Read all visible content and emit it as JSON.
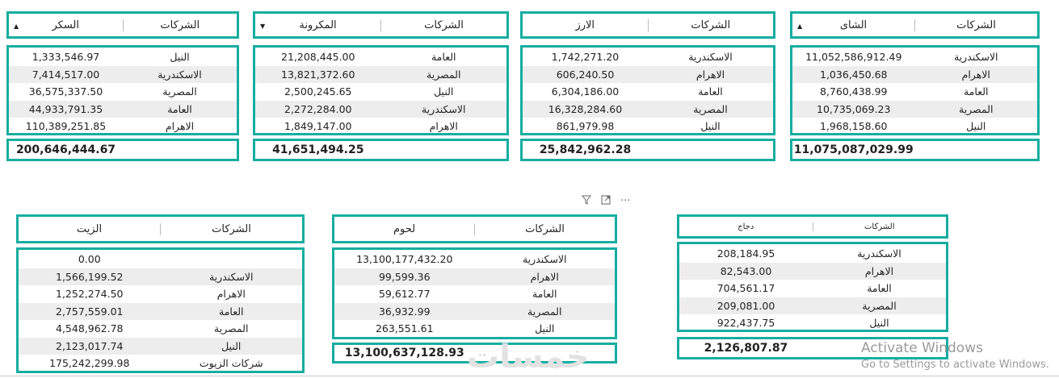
{
  "tables": [
    {
      "id": "sugar",
      "value_header": "السكر",
      "company_header": "الشركات",
      "sort_indicator": "▲",
      "rows": [
        {
          "value": "1,333,546.97",
          "company": "النيل"
        },
        {
          "value": "7,414,517.00",
          "company": "الاسكندرية"
        },
        {
          "value": "36,575,337.50",
          "company": "المصرية"
        },
        {
          "value": "44,933,791.35",
          "company": "العامة"
        },
        {
          "value": "110,389,251.85",
          "company": "الاهرام"
        }
      ],
      "total": "200,646,444.67"
    },
    {
      "id": "pasta",
      "value_header": "المكرونة",
      "company_header": "الشركات",
      "sort_indicator": "▼",
      "rows": [
        {
          "value": "21,208,445.00",
          "company": "العامة"
        },
        {
          "value": "13,821,372.60",
          "company": "المصرية"
        },
        {
          "value": "2,500,245.65",
          "company": "النيل"
        },
        {
          "value": "2,272,284.00",
          "company": "الاسكندرية"
        },
        {
          "value": "1,849,147.00",
          "company": "الاهرام"
        }
      ],
      "total": "41,651,494.25"
    },
    {
      "id": "rice",
      "value_header": "الارز",
      "company_header": "الشركات",
      "sort_indicator": "",
      "rows": [
        {
          "value": "1,742,271.20",
          "company": "الاسكندرية"
        },
        {
          "value": "606,240.50",
          "company": "الاهرام"
        },
        {
          "value": "6,304,186.00",
          "company": "العامة"
        },
        {
          "value": "16,328,284.60",
          "company": "المصرية"
        },
        {
          "value": "861,979.98",
          "company": "النيل"
        }
      ],
      "total": "25,842,962.28"
    },
    {
      "id": "tea",
      "value_header": "الشاى",
      "company_header": "الشركات",
      "sort_indicator": "▲",
      "rows": [
        {
          "value": "11,052,586,912.49",
          "company": "الاسكندرية"
        },
        {
          "value": "1,036,450.68",
          "company": "الاهرام"
        },
        {
          "value": "8,760,438.99",
          "company": "العامة"
        },
        {
          "value": "10,735,069.23",
          "company": "المصرية"
        },
        {
          "value": "1,968,158.60",
          "company": "النيل"
        }
      ],
      "total": "11,075,087,029.99"
    },
    {
      "id": "oil",
      "value_header": "الزيت",
      "company_header": "الشركات",
      "sort_indicator": "",
      "rows": [
        {
          "value": "0.00",
          "company": ""
        },
        {
          "value": "1,566,199.52",
          "company": "الاسكندرية"
        },
        {
          "value": "1,252,274.50",
          "company": "الاهرام"
        },
        {
          "value": "2,757,559.01",
          "company": "العامة"
        },
        {
          "value": "4,548,962.78",
          "company": "المصرية"
        },
        {
          "value": "2,123,017.74",
          "company": "النيل"
        },
        {
          "value": "175,242,299.98",
          "company": "شركات الزيوت"
        }
      ],
      "total": ""
    },
    {
      "id": "meat",
      "value_header": "لحوم",
      "company_header": "الشركات",
      "sort_indicator": "",
      "rows": [
        {
          "value": "13,100,177,432.20",
          "company": "الاسكندرية"
        },
        {
          "value": "99,599.36",
          "company": "الاهرام"
        },
        {
          "value": "59,612.77",
          "company": "العامة"
        },
        {
          "value": "36,932.99",
          "company": "المصرية"
        },
        {
          "value": "263,551.61",
          "company": "النيل"
        }
      ],
      "total": "13,100,637,128.93"
    },
    {
      "id": "chicken",
      "value_header": "دجاج",
      "company_header": "الشركات",
      "sort_indicator": "",
      "rows": [
        {
          "value": "208,184.95",
          "company": "الاسكندرية"
        },
        {
          "value": "82,543.00",
          "company": "الاهرام"
        },
        {
          "value": "704,561.17",
          "company": "العامة"
        },
        {
          "value": "209,081.00",
          "company": "المصرية"
        },
        {
          "value": "922,437.75",
          "company": "النيل"
        }
      ],
      "total": "2,126,807.87"
    }
  ],
  "visual_header_icons": {
    "filter": "filter-icon",
    "focus": "focus-mode-icon",
    "more": "more-options-icon",
    "more_glyph": "···"
  },
  "watermark": {
    "logo_text": "خمسات"
  },
  "windows_activation": {
    "line1": "Activate Windows",
    "line2": "Go to Settings to activate Windows."
  },
  "colors": {
    "accent": "#16ada0",
    "stripe": "#ededed"
  }
}
